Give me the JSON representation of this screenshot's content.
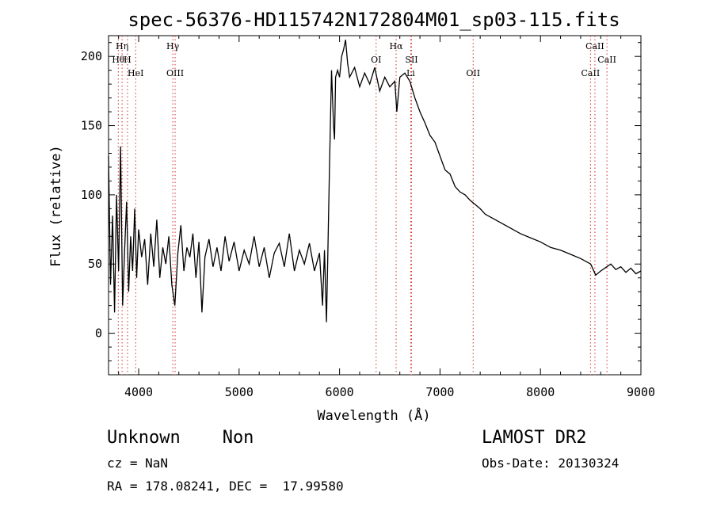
{
  "chart_data": {
    "type": "line",
    "title": "spec-56376-HD115742N172804M01_sp03-115.fits",
    "xlabel": "Wavelength (Å)",
    "ylabel": "Flux (relative)",
    "xlim": [
      3700,
      9000
    ],
    "ylim": [
      -30,
      215
    ],
    "xticks": [
      4000,
      5000,
      6000,
      7000,
      8000,
      9000
    ],
    "yticks": [
      0,
      50,
      100,
      150,
      200
    ],
    "grid": false,
    "series": [
      {
        "points": [
          [
            3700,
            128
          ],
          [
            3720,
            35
          ],
          [
            3740,
            85
          ],
          [
            3760,
            15
          ],
          [
            3780,
            100
          ],
          [
            3800,
            45
          ],
          [
            3820,
            135
          ],
          [
            3840,
            20
          ],
          [
            3860,
            60
          ],
          [
            3880,
            95
          ],
          [
            3900,
            30
          ],
          [
            3920,
            70
          ],
          [
            3940,
            45
          ],
          [
            3960,
            90
          ],
          [
            3980,
            40
          ],
          [
            4000,
            75
          ],
          [
            4030,
            55
          ],
          [
            4060,
            68
          ],
          [
            4090,
            35
          ],
          [
            4120,
            72
          ],
          [
            4150,
            48
          ],
          [
            4180,
            82
          ],
          [
            4210,
            40
          ],
          [
            4240,
            62
          ],
          [
            4270,
            50
          ],
          [
            4300,
            70
          ],
          [
            4330,
            35
          ],
          [
            4360,
            20
          ],
          [
            4390,
            58
          ],
          [
            4420,
            78
          ],
          [
            4450,
            45
          ],
          [
            4480,
            62
          ],
          [
            4510,
            55
          ],
          [
            4540,
            72
          ],
          [
            4570,
            40
          ],
          [
            4600,
            66
          ],
          [
            4630,
            15
          ],
          [
            4660,
            55
          ],
          [
            4700,
            68
          ],
          [
            4740,
            48
          ],
          [
            4780,
            62
          ],
          [
            4820,
            45
          ],
          [
            4860,
            70
          ],
          [
            4900,
            52
          ],
          [
            4950,
            66
          ],
          [
            5000,
            45
          ],
          [
            5050,
            60
          ],
          [
            5100,
            50
          ],
          [
            5150,
            70
          ],
          [
            5200,
            48
          ],
          [
            5250,
            62
          ],
          [
            5300,
            40
          ],
          [
            5350,
            58
          ],
          [
            5400,
            65
          ],
          [
            5450,
            48
          ],
          [
            5500,
            72
          ],
          [
            5550,
            45
          ],
          [
            5600,
            60
          ],
          [
            5650,
            50
          ],
          [
            5700,
            65
          ],
          [
            5750,
            45
          ],
          [
            5800,
            58
          ],
          [
            5830,
            20
          ],
          [
            5850,
            60
          ],
          [
            5870,
            8
          ],
          [
            5880,
            45
          ],
          [
            5900,
            120
          ],
          [
            5920,
            190
          ],
          [
            5940,
            150
          ],
          [
            5950,
            140
          ],
          [
            5960,
            185
          ],
          [
            5980,
            190
          ],
          [
            6000,
            185
          ],
          [
            6020,
            200
          ],
          [
            6040,
            205
          ],
          [
            6060,
            212
          ],
          [
            6080,
            195
          ],
          [
            6100,
            185
          ],
          [
            6150,
            192
          ],
          [
            6200,
            178
          ],
          [
            6250,
            188
          ],
          [
            6300,
            180
          ],
          [
            6350,
            192
          ],
          [
            6400,
            175
          ],
          [
            6450,
            185
          ],
          [
            6500,
            178
          ],
          [
            6550,
            182
          ],
          [
            6570,
            160
          ],
          [
            6600,
            185
          ],
          [
            6650,
            188
          ],
          [
            6700,
            182
          ],
          [
            6750,
            170
          ],
          [
            6800,
            160
          ],
          [
            6850,
            152
          ],
          [
            6900,
            143
          ],
          [
            6950,
            138
          ],
          [
            7000,
            128
          ],
          [
            7050,
            118
          ],
          [
            7100,
            115
          ],
          [
            7150,
            106
          ],
          [
            7200,
            102
          ],
          [
            7250,
            100
          ],
          [
            7300,
            96
          ],
          [
            7350,
            93
          ],
          [
            7400,
            90
          ],
          [
            7450,
            86
          ],
          [
            7500,
            84
          ],
          [
            7600,
            80
          ],
          [
            7700,
            76
          ],
          [
            7800,
            72
          ],
          [
            7900,
            69
          ],
          [
            8000,
            66
          ],
          [
            8100,
            62
          ],
          [
            8200,
            60
          ],
          [
            8300,
            57
          ],
          [
            8400,
            54
          ],
          [
            8500,
            50
          ],
          [
            8550,
            42
          ],
          [
            8600,
            45
          ],
          [
            8700,
            50
          ],
          [
            8750,
            46
          ],
          [
            8800,
            48
          ],
          [
            8850,
            44
          ],
          [
            8900,
            47
          ],
          [
            8950,
            43
          ],
          [
            9000,
            45
          ]
        ]
      }
    ],
    "annotations": [
      {
        "label": "Hη",
        "x": 3835,
        "row": 1
      },
      {
        "label": "Hθ",
        "x": 3797,
        "row": 2
      },
      {
        "label": "H",
        "x": 3889,
        "row": 2
      },
      {
        "label": "HeI",
        "x": 3970,
        "row": 3
      },
      {
        "label": "Hγ",
        "x": 4340,
        "row": 1
      },
      {
        "label": "OIII",
        "x": 4363,
        "row": 3
      },
      {
        "label": "OI",
        "x": 6364,
        "row": 2
      },
      {
        "label": "Hα",
        "x": 6563,
        "row": 1
      },
      {
        "label": "SII",
        "x": 6717,
        "row": 2
      },
      {
        "label": "Li",
        "x": 6708,
        "row": 3
      },
      {
        "label": "OII",
        "x": 7330,
        "row": 3
      },
      {
        "label": "CaII",
        "x": 8542,
        "row": 1
      },
      {
        "label": "CaII",
        "x": 8662,
        "row": 2
      },
      {
        "label": "CaII",
        "x": 8498,
        "row": 3
      }
    ],
    "line_markers": [
      3797,
      3835,
      3889,
      3970,
      4340,
      4363,
      6364,
      6563,
      6708,
      6717,
      7330,
      8498,
      8542,
      8662
    ]
  },
  "footer": {
    "classification": "Unknown    Non",
    "survey": "LAMOST DR2",
    "cz": "cz = NaN",
    "obs_date": "Obs-Date: 20130324",
    "coords": "RA = 178.08241, DEC =  17.99580"
  }
}
